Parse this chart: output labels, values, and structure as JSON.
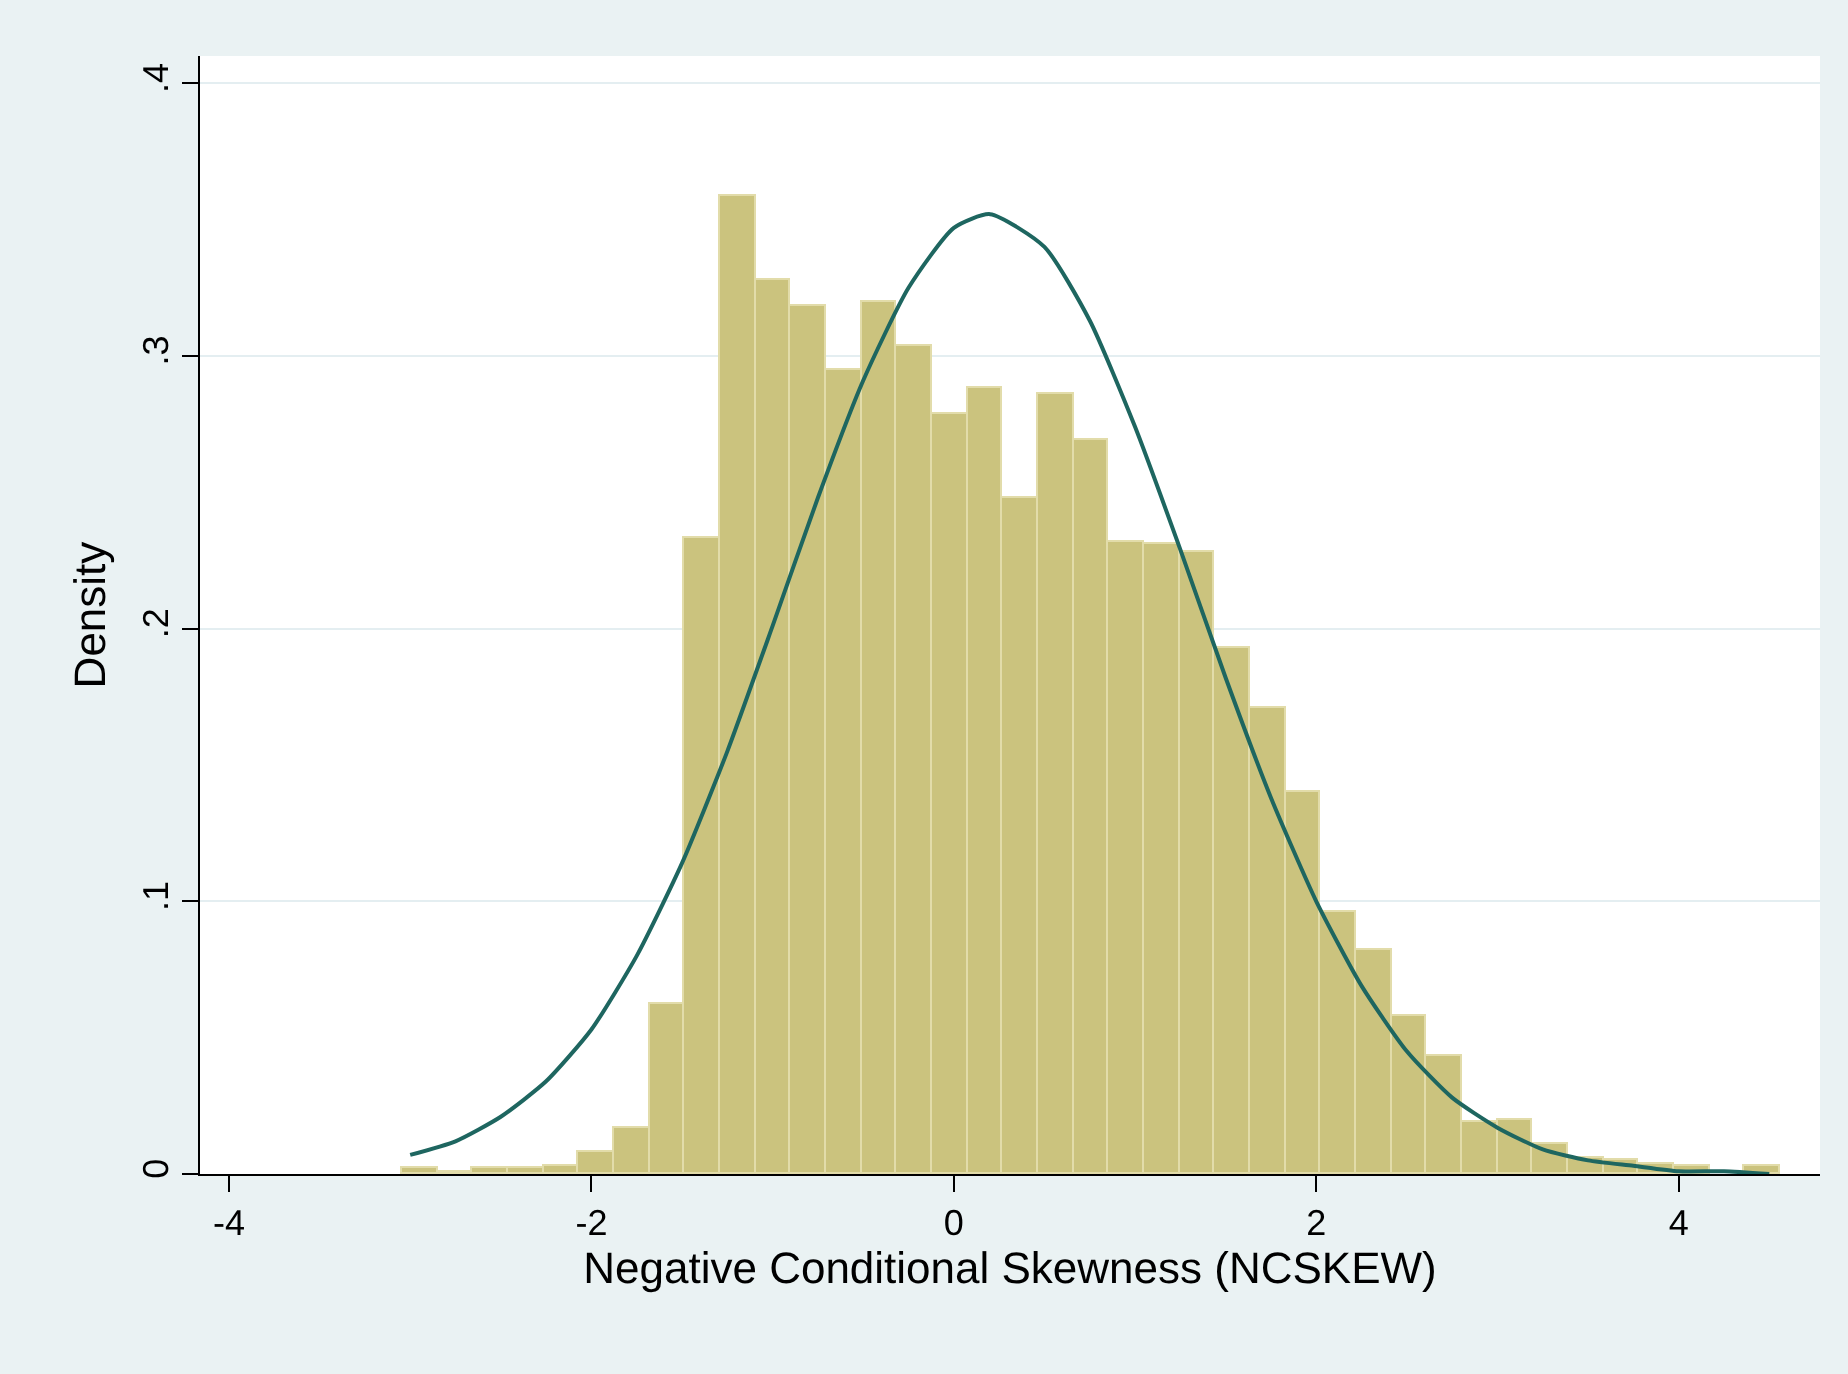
{
  "chart_data": {
    "type": "histogram",
    "xlabel": "Negative Conditional Skewness (NCSKEW)",
    "ylabel": "Density",
    "bins": [
      -3.047,
      -2.852,
      -2.657,
      -2.462,
      -2.267,
      -2.072,
      -1.877,
      -1.682,
      -1.487,
      -1.292,
      -1.097,
      -0.902,
      -0.707,
      -0.512,
      -0.317,
      -0.122,
      0.073,
      0.268,
      0.463,
      0.658,
      0.853,
      1.048,
      1.243,
      1.438,
      1.633,
      1.828,
      2.023,
      2.218,
      2.413,
      2.608,
      2.803,
      2.998,
      3.193,
      3.388,
      3.583,
      3.778,
      3.973,
      4.168,
      4.363,
      4.558
    ],
    "values": [
      0.002,
      0.001,
      0.002,
      0.002,
      0.003,
      0.008,
      0.017,
      0.062,
      0.233,
      0.359,
      0.328,
      0.318,
      0.295,
      0.32,
      0.304,
      0.279,
      0.288,
      0.248,
      0.286,
      0.269,
      0.232,
      0.231,
      0.228,
      0.193,
      0.171,
      0.14,
      0.096,
      0.082,
      0.058,
      0.043,
      0.019,
      0.02,
      0.011,
      0.006,
      0.005,
      0.004,
      0.003,
      null,
      0.003
    ],
    "color": "#cbc37e",
    "series": [
      {
        "type": "line",
        "color": "#1e6660",
        "x": [
          -3.0,
          -2.75,
          -2.5,
          -2.25,
          -2.0,
          -1.75,
          -1.5,
          -1.25,
          -1.0,
          -0.75,
          -0.5,
          -0.25,
          0.0,
          0.2,
          0.5,
          0.75,
          1.0,
          1.25,
          1.5,
          1.75,
          2.0,
          2.25,
          2.5,
          2.75,
          3.0,
          3.25,
          3.5,
          3.75,
          4.0,
          4.25,
          4.5
        ],
        "values": [
          0.007,
          0.012,
          0.021,
          0.034,
          0.053,
          0.08,
          0.114,
          0.155,
          0.201,
          0.248,
          0.291,
          0.325,
          0.347,
          0.352,
          0.34,
          0.313,
          0.274,
          0.229,
          0.182,
          0.138,
          0.1,
          0.069,
          0.045,
          0.028,
          0.017,
          0.009,
          0.005,
          0.003,
          0.001,
          0.001,
          0.0
        ]
      }
    ],
    "xlim": [
      -4.16,
      4.78
    ],
    "xticks": [
      -4,
      -2,
      0,
      2,
      4
    ],
    "ylim": [
      0,
      0.41
    ],
    "yticks": [
      0,
      {
        "value": 0.1,
        "label": ".1"
      },
      {
        "value": 0.2,
        "label": ".2"
      },
      {
        "value": 0.3,
        "label": ".3"
      },
      {
        "value": 0.4,
        "label": ".4"
      }
    ],
    "grid": "y"
  }
}
